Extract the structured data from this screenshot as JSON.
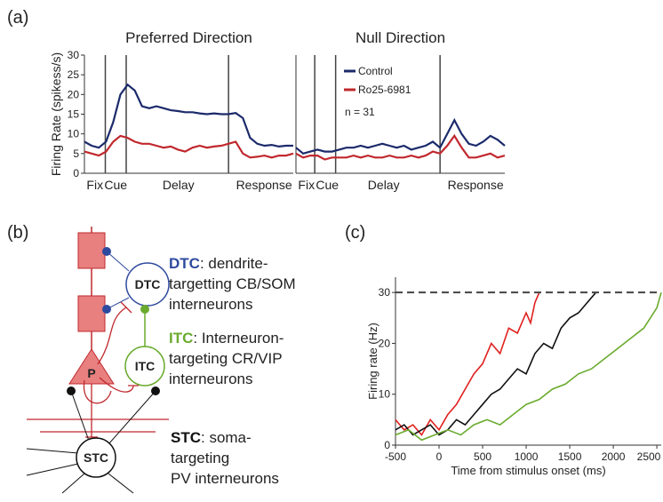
{
  "panel_labels": [
    "(a)",
    "(b)",
    "(c)"
  ],
  "chart_data": [
    {
      "type": "line",
      "title": "Preferred Direction",
      "y_label": "Firing Rate (spikess/s)",
      "phase_labels": [
        "Fix",
        "Cue",
        "Delay",
        "Response"
      ],
      "ylim": [
        0,
        30
      ],
      "yticks": [
        0,
        5,
        10,
        15,
        20,
        25,
        30
      ],
      "series": [
        {
          "name": "Control",
          "color": "#1b2a6b",
          "values": [
            8,
            7,
            6.5,
            8,
            13,
            20,
            22.5,
            21,
            17,
            16.5,
            17,
            16.5,
            16,
            15.8,
            15.5,
            15.5,
            15.2,
            15,
            15.2,
            15,
            15,
            15.3,
            14,
            9,
            7.5,
            7,
            7.2,
            6.8,
            7,
            7
          ]
        },
        {
          "name": "Ro25-6981",
          "color": "#c0282d",
          "values": [
            5.5,
            5,
            4.5,
            5.5,
            8,
            9.5,
            9,
            8,
            7.5,
            7.5,
            7,
            6.5,
            6.8,
            6,
            5.5,
            6.5,
            7,
            6.5,
            6.8,
            7,
            7.5,
            8,
            5,
            4,
            4.2,
            4.5,
            4,
            4.5,
            4.5,
            5
          ]
        }
      ]
    },
    {
      "type": "line",
      "title": "Null Direction",
      "phase_labels": [
        "Fix",
        "Cue",
        "Delay",
        "Response"
      ],
      "ylim": [
        0,
        30
      ],
      "legend": "top-left",
      "annotation": "n = 31",
      "series": [
        {
          "name": "Control",
          "color": "#1b2a6b",
          "values": [
            6.5,
            5,
            5.5,
            6,
            5.5,
            5.5,
            6,
            6.5,
            6.5,
            7,
            6.5,
            7,
            7.5,
            7,
            6.5,
            7,
            6,
            6.5,
            7,
            8,
            6.5,
            10,
            13.5,
            10,
            7.5,
            7,
            8,
            9.5,
            8.5,
            7
          ]
        },
        {
          "name": "Ro25-6981",
          "color": "#c0282d",
          "values": [
            5,
            4,
            4.5,
            4.5,
            3.5,
            4,
            4,
            4,
            4.5,
            4,
            4.5,
            4,
            4,
            4.5,
            4,
            4,
            4.5,
            4,
            4.5,
            5.5,
            5,
            7,
            9.5,
            6.5,
            4,
            4,
            4.5,
            5,
            4,
            4.5
          ]
        }
      ]
    },
    {
      "type": "xyline",
      "x_label": "Time from stimulus onset (ms)",
      "y_label": "Firing rate (Hz)",
      "xlim": [
        -500,
        2550
      ],
      "xticks": [
        -500,
        0,
        500,
        1000,
        1500,
        2000,
        2500
      ],
      "ylim": [
        0,
        33
      ],
      "yticks": [
        0,
        10,
        20,
        30
      ],
      "threshold": 30,
      "series": [
        {
          "color": "#e0201e",
          "x": [
            -500,
            -400,
            -300,
            -200,
            -100,
            0,
            100,
            200,
            300,
            400,
            500,
            600,
            700,
            800,
            900,
            1000,
            1050,
            1100,
            1150
          ],
          "values": [
            5,
            3,
            4,
            2,
            5,
            3,
            6,
            8,
            11,
            14,
            16,
            20,
            18,
            23,
            22,
            26,
            24,
            28,
            30
          ]
        },
        {
          "color": "#111111",
          "x": [
            -500,
            -400,
            -300,
            -200,
            -100,
            0,
            100,
            200,
            300,
            400,
            500,
            600,
            700,
            800,
            900,
            1000,
            1100,
            1200,
            1300,
            1400,
            1500,
            1600,
            1700,
            1800
          ],
          "values": [
            3,
            4,
            2,
            3,
            4,
            2,
            3,
            5,
            4,
            6,
            8,
            10,
            11,
            13,
            15,
            14,
            18,
            20,
            19,
            23,
            25,
            26,
            28,
            30
          ]
        },
        {
          "color": "#6aab2e",
          "x": [
            -500,
            -350,
            -200,
            -50,
            100,
            250,
            400,
            550,
            700,
            850,
            1000,
            1150,
            1300,
            1450,
            1600,
            1750,
            1900,
            2050,
            2200,
            2350,
            2500,
            2550
          ],
          "values": [
            2,
            3,
            1,
            2,
            3,
            2,
            4,
            5,
            4,
            6,
            8,
            9,
            11,
            12,
            14,
            15,
            17,
            19,
            21,
            23,
            27,
            30
          ]
        }
      ]
    }
  ],
  "diagram": {
    "nodes": [
      {
        "label": "DTC"
      },
      {
        "label": "ITC"
      },
      {
        "label": "P"
      },
      {
        "label": "STC"
      }
    ],
    "descriptions": [
      {
        "term": "DTC",
        "lines": [
          ": dendrite-",
          "targetting CB/SOM",
          "interneurons"
        ]
      },
      {
        "term": "ITC",
        "lines": [
          ": Interneuron-",
          "targeting CR/VIP",
          "interneurons"
        ]
      },
      {
        "term": "STC",
        "lines": [
          ": soma-",
          "targeting",
          "PV interneurons"
        ]
      }
    ]
  }
}
